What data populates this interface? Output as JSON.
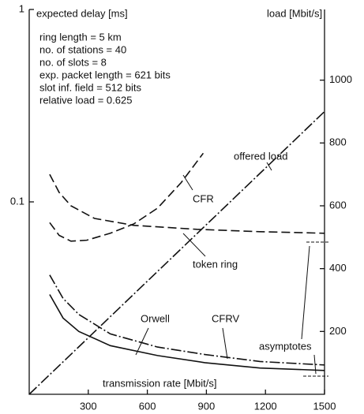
{
  "chart_data": {
    "type": "line",
    "ylabel": "expected delay [ms]",
    "y2label": "load [Mbit/s]",
    "xlabel": "transmission rate [Mbit/s]",
    "annotations": [
      "ring length = 5 km",
      "no. of stations = 40",
      "no. of slots = 8",
      "exp. packet length = 621 bits",
      "slot inf. field = 512 bits",
      "relative load = 0.625"
    ],
    "asymptote_label": "asymptotes",
    "xlim": [
      0,
      1500
    ],
    "xticks": [
      300,
      600,
      900,
      1200,
      1500
    ],
    "ylim": [
      0.01,
      1
    ],
    "ylog": true,
    "yticks": [
      0.1,
      1
    ],
    "y2lim": [
      0,
      1225
    ],
    "y2ticks": [
      200,
      400,
      600,
      800,
      1000
    ],
    "series": [
      {
        "name": "offered load",
        "color": "#111111",
        "style": "dashdot",
        "axis": "y2",
        "x": [
          0,
          1500
        ],
        "values": [
          0,
          900
        ]
      },
      {
        "name": "CFR",
        "color": "#111111",
        "style": "dashed",
        "x": [
          104,
          152,
          212,
          292,
          412,
          532,
          652,
          772,
          884
        ],
        "values": [
          0.078,
          0.067,
          0.0625,
          0.0632,
          0.0687,
          0.0769,
          0.0928,
          0.126,
          0.179
        ]
      },
      {
        "name": "token ring",
        "color": "#111111",
        "style": "dashed",
        "x": [
          104,
          152,
          212,
          332,
          532,
          852,
          1172,
          1500
        ],
        "values": [
          0.139,
          0.112,
          0.0954,
          0.082,
          0.0755,
          0.072,
          0.07,
          0.0687
        ]
      },
      {
        "name": "CFRV",
        "color": "#111111",
        "style": "dashdot",
        "x": [
          104,
          172,
          252,
          412,
          652,
          892,
          1172,
          1500
        ],
        "values": [
          0.0417,
          0.0315,
          0.026,
          0.0206,
          0.0176,
          0.0161,
          0.0148,
          0.0142
        ]
      },
      {
        "name": "Orwell",
        "color": "#111111",
        "style": "solid",
        "x": [
          104,
          172,
          252,
          412,
          652,
          892,
          1172,
          1500
        ],
        "values": [
          0.033,
          0.0249,
          0.0212,
          0.0179,
          0.0159,
          0.0146,
          0.0137,
          0.0133
        ]
      }
    ]
  }
}
